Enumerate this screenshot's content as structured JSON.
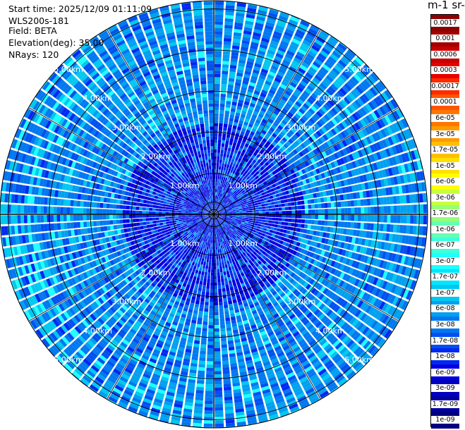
{
  "header": {
    "start_time": "Start time: 2025/12/09 01:11:09",
    "instrument": "WLS200s-181",
    "field": "Field: BETA",
    "elevation": "Elevation(deg): 35.00",
    "nrays": "NRays: 120"
  },
  "colorbar": {
    "title": "m-1 sr-",
    "labels": [
      "0.0017",
      "0.001",
      "0.0006",
      "0.0003",
      "0.00017",
      "0.0001",
      "6e-05",
      "3e-05",
      "1.7e-05",
      "1e-05",
      "6e-06",
      "3e-06",
      "1.7e-06",
      "1e-06",
      "6e-07",
      "3e-07",
      "1.7e-07",
      "1e-07",
      "6e-08",
      "3e-08",
      "1.7e-08",
      "1e-08",
      "6e-09",
      "3e-09",
      "1.7e-09",
      "1e-09"
    ],
    "colors": [
      "#8b0000",
      "#a30000",
      "#c80000",
      "#e60000",
      "#ff2a00",
      "#ff5500",
      "#ff7700",
      "#ff9a00",
      "#ffbf00",
      "#ffe000",
      "#ffff00",
      "#c8ff3c",
      "#96ff78",
      "#64ffb4",
      "#3cffdc",
      "#1effff",
      "#00e6ff",
      "#00c8f0",
      "#00a0f0",
      "#0078f0",
      "#0050f0",
      "#0028f0",
      "#0000e0",
      "#0000c0",
      "#0000a0",
      "#000080"
    ]
  },
  "chart_data": {
    "type": "heatmap",
    "projection": "polar-ppi",
    "field": "BETA",
    "elevation_deg": 35.0,
    "n_rays": 120,
    "range_rings_km": [
      1.0,
      2.0,
      3.0,
      4.0,
      5.0
    ],
    "ring_labels": [
      "1.00km",
      "2.00km",
      "3.00km",
      "4.00km",
      "5.00km"
    ],
    "azimuth_grid_deg": 30,
    "color_scale": "log",
    "value_range": [
      1e-09,
      0.0017
    ],
    "dominant_values": [
      "1e-08",
      "3e-08",
      "6e-08"
    ],
    "grid": true
  }
}
